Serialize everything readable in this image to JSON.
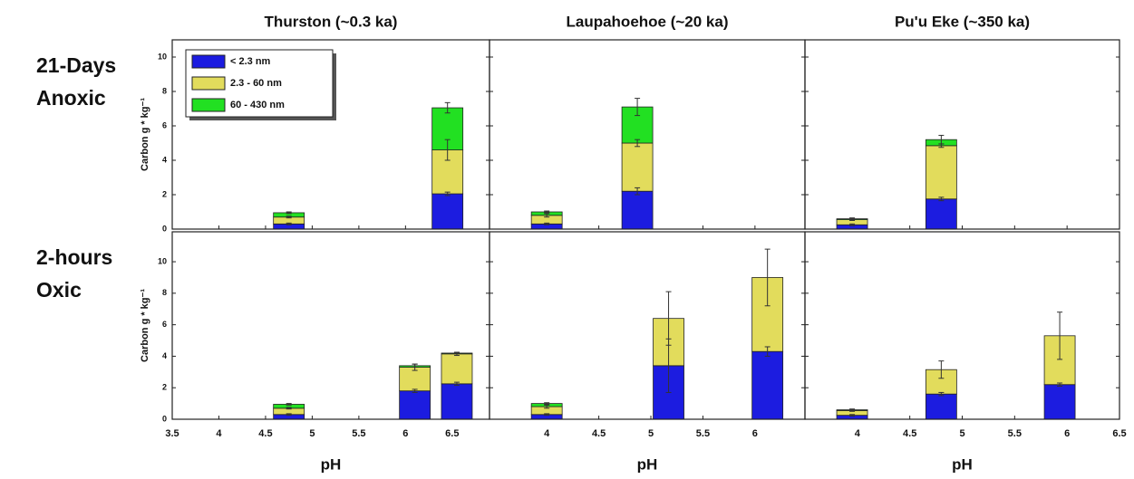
{
  "chart_data": {
    "type": "stacked-bar",
    "xlabel": "pH",
    "ylabel": "Carbon g * kg⁻¹",
    "legend": [
      {
        "name": "< 2.3 nm",
        "color": "#1c1ce0"
      },
      {
        "name": "2.3 - 60 nm",
        "color": "#e2dc5c"
      },
      {
        "name": "60 - 430 nm",
        "color": "#22e022"
      }
    ],
    "columns": [
      {
        "title": "Thurston (~0.3 ka)",
        "xlim": [
          3.5,
          6.9
        ],
        "xticks": [
          3.5,
          4.0,
          4.5,
          5.0,
          5.5,
          6.0,
          6.5
        ]
      },
      {
        "title": "Laupahoehoe (~20 ka)",
        "xlim": [
          3.45,
          6.48
        ],
        "xticks": [
          4.0,
          4.5,
          5.0,
          5.5,
          6.0
        ]
      },
      {
        "title": "Pu'u Eke (~350 ka)",
        "xlim": [
          3.5,
          6.5
        ],
        "xticks": [
          4.0,
          4.5,
          5.0,
          5.5,
          6.0,
          6.5
        ]
      }
    ],
    "rows": [
      {
        "label": [
          "21-Days",
          "Anoxic"
        ],
        "ylim": [
          0,
          11
        ],
        "yticks": [
          0,
          2,
          4,
          6,
          8,
          10
        ],
        "panels": [
          {
            "x": [
              4.75,
              6.45
            ],
            "values": [
              [
                0.3,
                2.05
              ],
              [
                0.4,
                2.55
              ],
              [
                0.25,
                2.45
              ]
            ],
            "errors": [
              [
                0.05,
                0.1
              ],
              [
                0.05,
                0.6
              ],
              [
                0.05,
                0.3
              ]
            ]
          },
          {
            "x": [
              4.0,
              4.87
            ],
            "values": [
              [
                0.3,
                2.2
              ],
              [
                0.5,
                2.8
              ],
              [
                0.2,
                2.1
              ]
            ],
            "errors": [
              [
                0.05,
                0.2
              ],
              [
                0.1,
                0.2
              ],
              [
                0.05,
                0.5
              ]
            ]
          },
          {
            "x": [
              3.95,
              4.8
            ],
            "values": [
              [
                0.25,
                1.75
              ],
              [
                0.3,
                3.1
              ],
              [
                0.05,
                0.35
              ]
            ],
            "errors": [
              [
                0.05,
                0.1
              ],
              [
                0.05,
                0.1
              ],
              [
                0.05,
                0.25
              ]
            ]
          }
        ]
      },
      {
        "label": [
          "2-hours",
          "Oxic"
        ],
        "ylim": [
          0,
          11.9
        ],
        "yticks": [
          0,
          2,
          4,
          6,
          8,
          10
        ],
        "panels": [
          {
            "x": [
              4.75,
              6.1,
              6.55
            ],
            "values": [
              [
                0.3,
                1.8,
                2.25
              ],
              [
                0.4,
                1.5,
                1.9
              ],
              [
                0.25,
                0.1,
                0.05
              ]
            ],
            "errors": [
              [
                0.05,
                0.1,
                0.1
              ],
              [
                0.05,
                0.2,
                0.1
              ],
              [
                0.05,
                0.1,
                0.05
              ]
            ]
          },
          {
            "x": [
              4.0,
              5.17,
              6.12
            ],
            "values": [
              [
                0.3,
                3.4,
                4.3
              ],
              [
                0.5,
                3.0,
                4.7
              ],
              [
                0.2,
                0,
                0
              ]
            ],
            "errors": [
              [
                0.05,
                1.7,
                0.3
              ],
              [
                0.1,
                1.7,
                1.8
              ],
              [
                0.05,
                null,
                null
              ]
            ]
          },
          {
            "x": [
              3.95,
              4.8,
              5.93
            ],
            "values": [
              [
                0.25,
                1.6,
                2.2
              ],
              [
                0.3,
                1.55,
                3.1
              ],
              [
                0.05,
                0,
                0
              ]
            ],
            "errors": [
              [
                0.05,
                0.1,
                0.1
              ],
              [
                0.05,
                0.55,
                1.5
              ],
              [
                0.05,
                null,
                null
              ]
            ]
          }
        ]
      }
    ]
  }
}
